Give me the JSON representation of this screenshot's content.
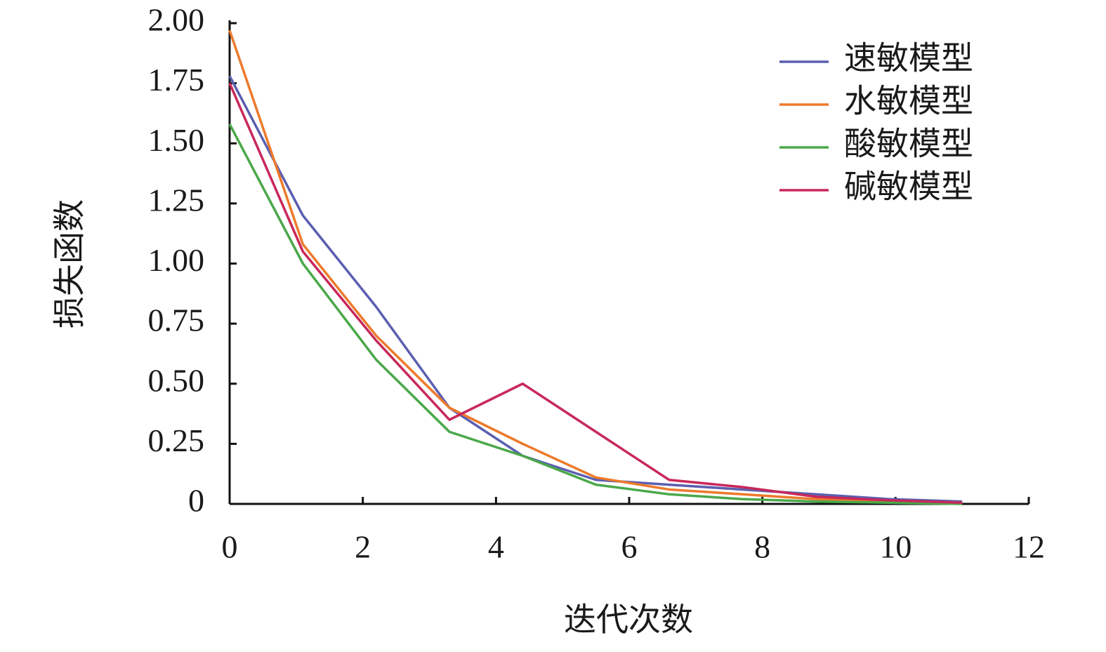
{
  "chart_data": {
    "type": "line",
    "x_label": "迭代次数",
    "y_label": "损失函数",
    "x": [
      0,
      1.1,
      2.2,
      3.3,
      4.4,
      5.5,
      6.6,
      7.7,
      8.8,
      9.9,
      11
    ],
    "series": [
      {
        "name": "速敏模型",
        "color": "#5b5fb0",
        "values": [
          1.78,
          1.2,
          0.82,
          0.4,
          0.2,
          0.1,
          0.08,
          0.06,
          0.04,
          0.02,
          0.01
        ]
      },
      {
        "name": "水敏模型",
        "color": "#ec7a2c",
        "values": [
          1.97,
          1.08,
          0.7,
          0.4,
          0.25,
          0.11,
          0.06,
          0.04,
          0.02,
          0.01,
          0.005
        ]
      },
      {
        "name": "酸敏模型",
        "color": "#4aa84a",
        "values": [
          1.58,
          1.0,
          0.6,
          0.3,
          0.2,
          0.08,
          0.04,
          0.02,
          0.01,
          0.005,
          0
        ]
      },
      {
        "name": "碱敏模型",
        "color": "#c8285a",
        "values": [
          1.75,
          1.05,
          0.68,
          0.35,
          0.5,
          0.3,
          0.1,
          0.07,
          0.03,
          0.015,
          0.005
        ]
      }
    ],
    "xlim": [
      0,
      12
    ],
    "xticks": [
      0,
      2,
      4,
      6,
      8,
      10,
      12
    ],
    "ylim": [
      0,
      2
    ],
    "yticks": [
      0,
      0.25,
      {
        "value": 0.5,
        "label": "0.50"
      },
      0.75,
      {
        "value": 1,
        "label": "1.00"
      },
      1.25,
      {
        "value": 1.5,
        "label": "1.50"
      },
      1.75,
      {
        "value": 2,
        "label": "2.00"
      }
    ],
    "legend": "upper right",
    "grid": false
  }
}
